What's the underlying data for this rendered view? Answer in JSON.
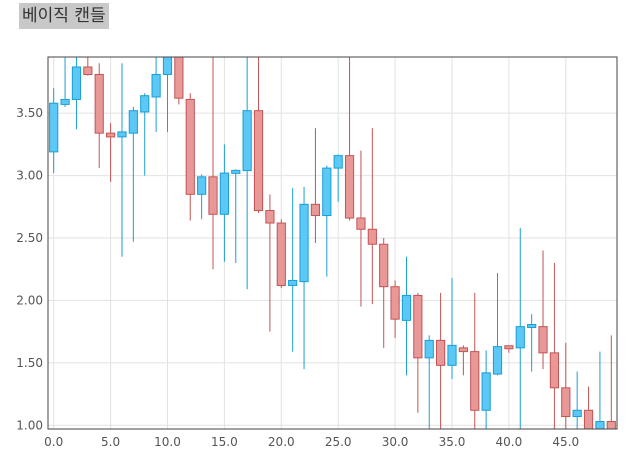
{
  "chart_data": {
    "type": "candlestick",
    "title": "베이직 캔들",
    "xlabel": "",
    "ylabel": "",
    "xlim": [
      -0.5,
      49.5
    ],
    "ylim": [
      0.97,
      3.95
    ],
    "x_ticks": [
      "0.0",
      "5.0",
      "10.0",
      "15.0",
      "20.0",
      "25.0",
      "30.0",
      "35.0",
      "40.0",
      "45.0"
    ],
    "y_ticks": [
      "1.00",
      "1.50",
      "2.00",
      "2.50",
      "3.00",
      "3.50"
    ],
    "x_tick_values": [
      0,
      5,
      10,
      15,
      20,
      25,
      30,
      35,
      40,
      45
    ],
    "y_tick_values": [
      1.0,
      1.5,
      2.0,
      2.5,
      3.0,
      3.5
    ],
    "colors": {
      "up": "#5bc8f5",
      "up_stroke": "#1a9fd4",
      "down": "#e99898",
      "down_stroke": "#c25454"
    },
    "candles": [
      {
        "x": 0,
        "open": 3.19,
        "close": 3.58,
        "high": 3.7,
        "low": 3.02
      },
      {
        "x": 1,
        "open": 3.57,
        "close": 3.61,
        "high": 3.95,
        "low": 3.55
      },
      {
        "x": 2,
        "open": 3.61,
        "close": 3.87,
        "high": 3.95,
        "low": 3.37
      },
      {
        "x": 3,
        "open": 3.87,
        "close": 3.81,
        "high": 3.95,
        "low": 3.8
      },
      {
        "x": 4,
        "open": 3.81,
        "close": 3.34,
        "high": 3.9,
        "low": 3.06
      },
      {
        "x": 5,
        "open": 3.34,
        "close": 3.31,
        "high": 3.42,
        "low": 2.95
      },
      {
        "x": 6,
        "open": 3.31,
        "close": 3.35,
        "high": 3.9,
        "low": 2.35
      },
      {
        "x": 7,
        "open": 3.34,
        "close": 3.52,
        "high": 3.55,
        "low": 2.47
      },
      {
        "x": 8,
        "open": 3.51,
        "close": 3.64,
        "high": 3.66,
        "low": 3.0
      },
      {
        "x": 9,
        "open": 3.63,
        "close": 3.81,
        "high": 3.95,
        "low": 3.35
      },
      {
        "x": 10,
        "open": 3.81,
        "close": 3.95,
        "high": 3.95,
        "low": 3.35
      },
      {
        "x": 11,
        "open": 3.95,
        "close": 3.62,
        "high": 3.95,
        "low": 3.57
      },
      {
        "x": 12,
        "open": 3.61,
        "close": 2.85,
        "high": 3.66,
        "low": 2.64
      },
      {
        "x": 13,
        "open": 2.85,
        "close": 2.99,
        "high": 3.01,
        "low": 2.65
      },
      {
        "x": 14,
        "open": 2.99,
        "close": 2.69,
        "high": 3.95,
        "low": 2.25
      },
      {
        "x": 15,
        "open": 2.69,
        "close": 3.02,
        "high": 3.25,
        "low": 2.31
      },
      {
        "x": 16,
        "open": 3.02,
        "close": 3.04,
        "high": 3.05,
        "low": 2.3
      },
      {
        "x": 17,
        "open": 3.04,
        "close": 3.52,
        "high": 3.95,
        "low": 2.09
      },
      {
        "x": 18,
        "open": 3.52,
        "close": 2.72,
        "high": 3.95,
        "low": 2.7
      },
      {
        "x": 19,
        "open": 2.72,
        "close": 2.62,
        "high": 2.85,
        "low": 1.75
      },
      {
        "x": 20,
        "open": 2.62,
        "close": 2.12,
        "high": 2.65,
        "low": 2.1
      },
      {
        "x": 21,
        "open": 2.12,
        "close": 2.16,
        "high": 2.9,
        "low": 1.59
      },
      {
        "x": 22,
        "open": 2.15,
        "close": 2.77,
        "high": 2.91,
        "low": 1.45
      },
      {
        "x": 23,
        "open": 2.77,
        "close": 2.68,
        "high": 3.38,
        "low": 2.46
      },
      {
        "x": 24,
        "open": 2.68,
        "close": 3.06,
        "high": 3.08,
        "low": 2.19
      },
      {
        "x": 25,
        "open": 3.06,
        "close": 3.16,
        "high": 3.17,
        "low": 2.79
      },
      {
        "x": 26,
        "open": 3.16,
        "close": 2.66,
        "high": 3.95,
        "low": 2.64
      },
      {
        "x": 27,
        "open": 2.66,
        "close": 2.57,
        "high": 3.2,
        "low": 1.95
      },
      {
        "x": 28,
        "open": 2.57,
        "close": 2.45,
        "high": 3.38,
        "low": 1.97
      },
      {
        "x": 29,
        "open": 2.45,
        "close": 2.11,
        "high": 2.5,
        "low": 1.62
      },
      {
        "x": 30,
        "open": 2.11,
        "close": 1.85,
        "high": 2.16,
        "low": 1.7
      },
      {
        "x": 31,
        "open": 1.84,
        "close": 2.04,
        "high": 2.35,
        "low": 1.4
      },
      {
        "x": 32,
        "open": 2.04,
        "close": 1.54,
        "high": 2.06,
        "low": 1.1
      },
      {
        "x": 33,
        "open": 1.54,
        "close": 1.68,
        "high": 1.72,
        "low": 0.97
      },
      {
        "x": 34,
        "open": 1.68,
        "close": 1.48,
        "high": 2.06,
        "low": 0.97
      },
      {
        "x": 35,
        "open": 1.48,
        "close": 1.64,
        "high": 2.18,
        "low": 1.37
      },
      {
        "x": 36,
        "open": 1.62,
        "close": 1.59,
        "high": 1.64,
        "low": 1.4
      },
      {
        "x": 37,
        "open": 1.59,
        "close": 1.12,
        "high": 2.06,
        "low": 0.97
      },
      {
        "x": 38,
        "open": 1.12,
        "close": 1.42,
        "high": 1.6,
        "low": 0.97
      },
      {
        "x": 39,
        "open": 1.41,
        "close": 1.63,
        "high": 2.22,
        "low": 1.4
      },
      {
        "x": 40,
        "open": 1.63,
        "close": 1.62,
        "high": 1.64,
        "low": 1.58
      },
      {
        "x": 41,
        "open": 1.62,
        "close": 1.79,
        "high": 2.58,
        "low": 0.97
      },
      {
        "x": 42,
        "open": 1.79,
        "close": 1.8,
        "high": 1.89,
        "low": 1.43
      },
      {
        "x": 43,
        "open": 1.79,
        "close": 1.58,
        "high": 2.4,
        "low": 1.45
      },
      {
        "x": 44,
        "open": 1.58,
        "close": 1.3,
        "high": 2.3,
        "low": 0.97
      },
      {
        "x": 45,
        "open": 1.3,
        "close": 1.07,
        "high": 1.66,
        "low": 0.97
      },
      {
        "x": 46,
        "open": 1.07,
        "close": 1.12,
        "high": 1.43,
        "low": 0.97
      },
      {
        "x": 47,
        "open": 1.12,
        "close": 0.97,
        "high": 1.31,
        "low": 0.97
      },
      {
        "x": 48,
        "open": 0.97,
        "close": 1.03,
        "high": 1.59,
        "low": 0.97
      },
      {
        "x": 49,
        "open": 1.03,
        "close": 0.97,
        "high": 1.72,
        "low": 0.97
      }
    ]
  }
}
